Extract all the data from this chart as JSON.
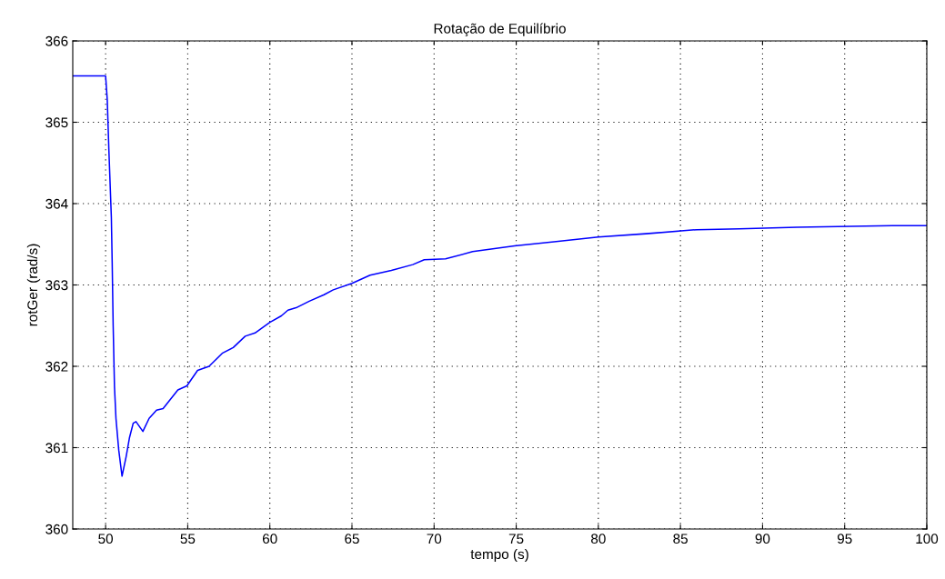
{
  "chart_data": {
    "type": "line",
    "title": "Rotação de Equilíbrio",
    "xlabel": "tempo (s)",
    "ylabel": "rotGer (rad/s)",
    "xlim": [
      48,
      100
    ],
    "xticks": [
      50,
      55,
      60,
      65,
      70,
      75,
      80,
      85,
      90,
      95,
      100
    ],
    "ylim": [
      360,
      366
    ],
    "yticks": [
      360,
      361,
      362,
      363,
      364,
      365,
      366
    ],
    "grid": true,
    "legend": false,
    "series": [
      {
        "color": "#0000ff",
        "line_style": "solid",
        "marker": "none",
        "x": [
          48,
          50.0,
          50.1,
          50.2,
          50.35,
          50.4,
          50.46,
          50.54,
          50.63,
          50.8,
          51.0,
          51.25,
          51.45,
          51.68,
          51.85,
          52.27,
          52.65,
          53.1,
          53.5,
          54.4,
          54.95,
          55.6,
          56.3,
          57.1,
          57.77,
          58.5,
          59.1,
          60.0,
          60.7,
          61.1,
          61.6,
          62.4,
          63.3,
          63.86,
          65.0,
          66.1,
          67.4,
          68.7,
          69.4,
          70.7,
          72.35,
          74.9,
          77.3,
          80.0,
          82.9,
          86.0,
          88.6,
          92.1,
          97.9,
          100
        ],
        "values": [
          365.57,
          365.57,
          365.28,
          364.65,
          363.83,
          363.28,
          362.5,
          361.75,
          361.36,
          360.97,
          360.65,
          360.89,
          361.12,
          361.3,
          361.32,
          361.2,
          361.36,
          361.46,
          361.48,
          361.71,
          361.76,
          361.95,
          362.0,
          362.16,
          362.23,
          362.37,
          362.41,
          362.54,
          362.62,
          362.69,
          362.72,
          362.8,
          362.88,
          362.94,
          363.02,
          363.12,
          363.18,
          363.25,
          363.31,
          363.32,
          363.41,
          363.48,
          363.53,
          363.59,
          363.63,
          363.68,
          363.69,
          363.71,
          363.73,
          363.73
        ]
      }
    ]
  }
}
